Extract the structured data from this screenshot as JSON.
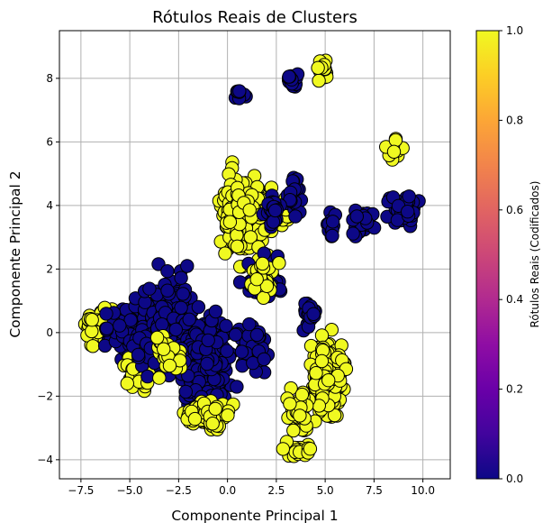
{
  "chart_data": {
    "type": "scatter",
    "title": "Rótulos Reais de Clusters",
    "xlabel": "Componente Principal 1",
    "ylabel": "Componente Principal 2",
    "xlim": [
      -8.6,
      11.4
    ],
    "ylim": [
      -4.6,
      9.5
    ],
    "xticks": [
      -7.5,
      -5.0,
      -2.5,
      0.0,
      2.5,
      5.0,
      7.5,
      10.0
    ],
    "xtick_labels": [
      "−7.5",
      "−5.0",
      "−2.5",
      "0.0",
      "2.5",
      "5.0",
      "7.5",
      "10.0"
    ],
    "yticks": [
      -4,
      -2,
      0,
      2,
      4,
      6,
      8
    ],
    "ytick_labels": [
      "−4",
      "−2",
      "0",
      "2",
      "4",
      "6",
      "8"
    ],
    "grid": true,
    "colormap": "plasma",
    "colorbar": {
      "label": "Rótulos Reais (Codificados)",
      "range": [
        0.0,
        1.0
      ],
      "ticks": [
        0.0,
        0.2,
        0.4,
        0.6,
        0.8,
        1.0
      ],
      "tick_labels": [
        "0.0",
        "0.2",
        "0.4",
        "0.6",
        "0.8",
        "1.0"
      ]
    },
    "colors": {
      "label_0": "#0d0887",
      "label_1": "#f0f921",
      "marker_edge": "#000000",
      "grid": "#b0b0b0"
    },
    "clusters": [
      {
        "label": 1,
        "center": [
          -6.6,
          0.3
        ],
        "spread": [
          0.6,
          0.5
        ],
        "count": 50
      },
      {
        "label": 0,
        "center": [
          -5.4,
          0.1
        ],
        "spread": [
          0.8,
          0.6
        ],
        "count": 70
      },
      {
        "label": 1,
        "center": [
          -4.6,
          -1.3
        ],
        "spread": [
          0.6,
          0.4
        ],
        "count": 40
      },
      {
        "label": 0,
        "center": [
          -3.0,
          0.2
        ],
        "spread": [
          1.2,
          1.3
        ],
        "count": 240
      },
      {
        "label": 0,
        "center": [
          -1.2,
          -0.9
        ],
        "spread": [
          1.2,
          1.3
        ],
        "count": 200
      },
      {
        "label": 1,
        "center": [
          -1.0,
          -2.6
        ],
        "spread": [
          1.0,
          0.4
        ],
        "count": 80
      },
      {
        "label": 1,
        "center": [
          -3.0,
          -0.7
        ],
        "spread": [
          0.6,
          0.5
        ],
        "count": 25
      },
      {
        "label": 0,
        "center": [
          1.3,
          -0.5
        ],
        "spread": [
          0.8,
          0.6
        ],
        "count": 45
      },
      {
        "label": 1,
        "center": [
          0.9,
          3.7
        ],
        "spread": [
          1.0,
          1.1
        ],
        "count": 240
      },
      {
        "label": 1,
        "center": [
          3.1,
          3.8
        ],
        "spread": [
          0.3,
          0.5
        ],
        "count": 30
      },
      {
        "label": 0,
        "center": [
          3.4,
          4.3
        ],
        "spread": [
          0.3,
          0.5
        ],
        "count": 25
      },
      {
        "label": 0,
        "center": [
          1.8,
          1.7
        ],
        "spread": [
          0.8,
          0.6
        ],
        "count": 55
      },
      {
        "label": 1,
        "center": [
          1.8,
          1.7
        ],
        "spread": [
          0.6,
          0.5
        ],
        "count": 25
      },
      {
        "label": 0,
        "center": [
          2.3,
          3.8
        ],
        "spread": [
          0.4,
          0.4
        ],
        "count": 25
      },
      {
        "label": 0,
        "center": [
          4.2,
          0.5
        ],
        "spread": [
          0.3,
          0.5
        ],
        "count": 25
      },
      {
        "label": 1,
        "center": [
          5.1,
          -1.4
        ],
        "spread": [
          0.7,
          1.0
        ],
        "count": 220
      },
      {
        "label": 1,
        "center": [
          3.7,
          -2.5
        ],
        "spread": [
          0.5,
          0.6
        ],
        "count": 45
      },
      {
        "label": 1,
        "center": [
          3.6,
          -3.7
        ],
        "spread": [
          0.6,
          0.2
        ],
        "count": 25
      },
      {
        "label": 0,
        "center": [
          5.3,
          3.4
        ],
        "spread": [
          0.2,
          0.4
        ],
        "count": 12
      },
      {
        "label": 0,
        "center": [
          6.9,
          3.5
        ],
        "spread": [
          0.6,
          0.4
        ],
        "count": 25
      },
      {
        "label": 0,
        "center": [
          9.0,
          3.9
        ],
        "spread": [
          0.7,
          0.4
        ],
        "count": 45
      },
      {
        "label": 1,
        "center": [
          8.6,
          5.8
        ],
        "spread": [
          0.5,
          0.4
        ],
        "count": 12
      },
      {
        "label": 0,
        "center": [
          0.6,
          7.5
        ],
        "spread": [
          0.3,
          0.2
        ],
        "count": 8
      },
      {
        "label": 0,
        "center": [
          3.3,
          8.0
        ],
        "spread": [
          0.4,
          0.2
        ],
        "count": 20
      },
      {
        "label": 1,
        "center": [
          4.9,
          8.3
        ],
        "spread": [
          0.3,
          0.4
        ],
        "count": 16
      }
    ]
  }
}
